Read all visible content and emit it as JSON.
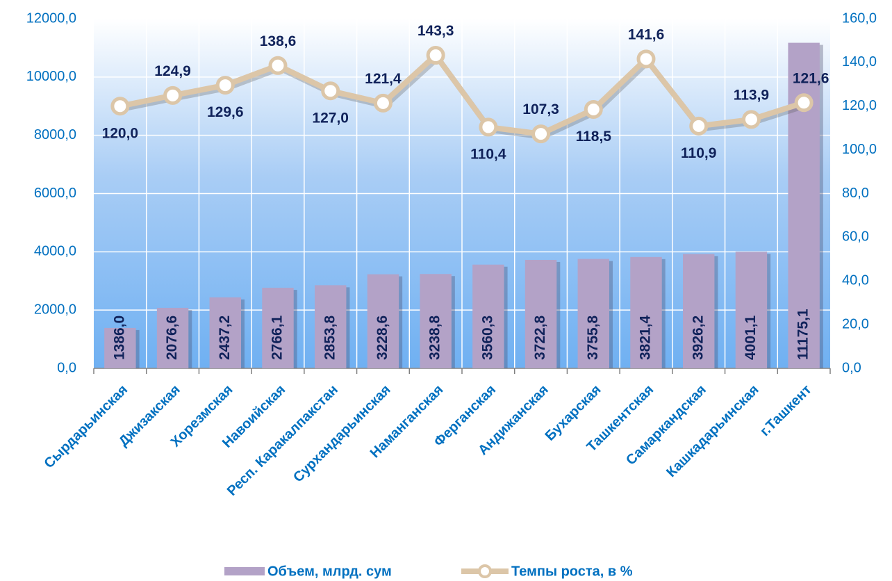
{
  "chart_data": {
    "type": "bar_line",
    "categories": [
      "Сырдарьинская",
      "Джизакская",
      "Хорезмская",
      "Навоийская",
      "Респ. Каракалпакстан",
      "Сурхандарьинская",
      "Наманганская",
      "Ферганская",
      "Андижанская",
      "Бухарская",
      "Ташкентская",
      "Самаркандская",
      "Кашкадарьинская",
      "г.Ташкент"
    ],
    "series": [
      {
        "name": "Объем, млрд. сум",
        "color": "#b3a2c7",
        "values": [
          1386.0,
          2076.6,
          2437.2,
          2766.1,
          2853.8,
          3228.6,
          3238.8,
          3560.3,
          3722.8,
          3755.8,
          3821.4,
          3926.2,
          4001.1,
          11175.1
        ],
        "value_labels": [
          "1386,0",
          "2076,6",
          "2437,2",
          "2766,1",
          "2853,8",
          "3228,6",
          "3238,8",
          "3560,3",
          "3722,8",
          "3755,8",
          "3821,4",
          "3926,2",
          "4001,1",
          "11175,1"
        ]
      },
      {
        "name": "Темпы роста, в %",
        "color": "#dcc6a8",
        "axis": "y2",
        "values": [
          120.0,
          124.9,
          129.6,
          138.6,
          127.0,
          121.4,
          143.3,
          110.4,
          107.3,
          118.5,
          141.6,
          110.9,
          113.9,
          121.6
        ],
        "value_labels": [
          "120,0",
          "124,9",
          "129,6",
          "138,6",
          "127,0",
          "121,4",
          "143,3",
          "110,4",
          "107,3",
          "118,5",
          "141,6",
          "110,9",
          "113,9",
          "121,6"
        ]
      }
    ],
    "ylim": [
      0,
      12000
    ],
    "yticks": [
      {
        "value": 0,
        "label": "0,0"
      },
      {
        "value": 2000,
        "label": "2000,0"
      },
      {
        "value": 4000,
        "label": "4000,0"
      },
      {
        "value": 6000,
        "label": "6000,0"
      },
      {
        "value": 8000,
        "label": "8000,0"
      },
      {
        "value": 10000,
        "label": "10000,0"
      },
      {
        "value": 12000,
        "label": "12000,0"
      }
    ],
    "y2lim": [
      0,
      160
    ],
    "y2ticks": [
      {
        "value": 0,
        "label": "0,0"
      },
      {
        "value": 20,
        "label": "20,0"
      },
      {
        "value": 40,
        "label": "40,0"
      },
      {
        "value": 60,
        "label": "60,0"
      },
      {
        "value": 80,
        "label": "80,0"
      },
      {
        "value": 100,
        "label": "100,0"
      },
      {
        "value": 120,
        "label": "120,0"
      },
      {
        "value": 140,
        "label": "140,0"
      },
      {
        "value": 160,
        "label": "160,0"
      }
    ],
    "grid": true,
    "legend": "bottom"
  }
}
